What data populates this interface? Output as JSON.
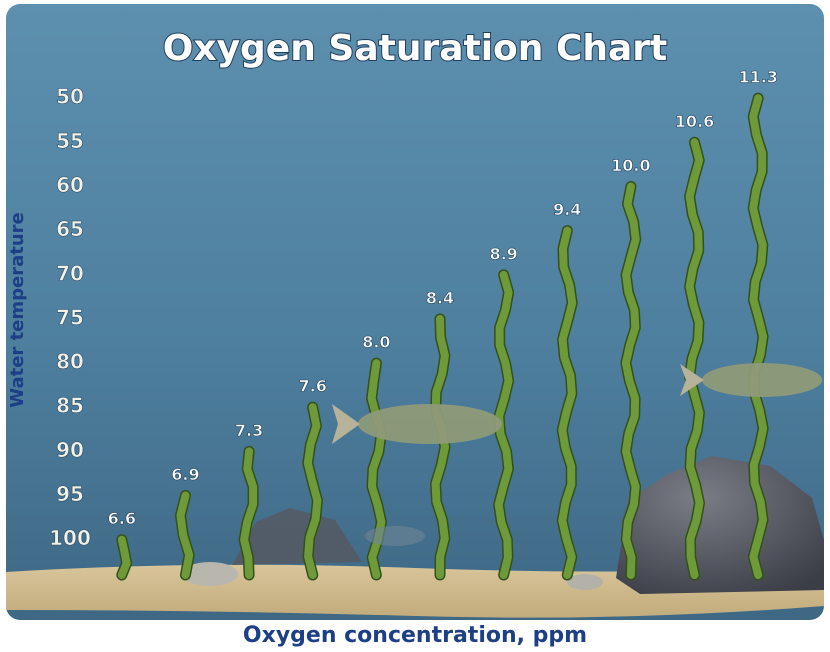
{
  "chart_data": {
    "type": "seaweed",
    "title": "Oxygen Saturation Chart",
    "x_label": "Oxygen concentration, ppm",
    "y_label": "Water temperature",
    "categories": [
      "6.6",
      "6.9",
      "7.3",
      "7.6",
      "8.0",
      "8.4",
      "8.9",
      "9.4",
      "10.0",
      "10.6",
      "11.3"
    ],
    "values": [
      100,
      95,
      90,
      85,
      80,
      75,
      70,
      65,
      60,
      55,
      50
    ],
    "color": "#6e9a3a",
    "ylim": [
      104,
      45
    ],
    "yticks": [
      50,
      55,
      60,
      65,
      70,
      75,
      80,
      85,
      90,
      95,
      100
    ],
    "grid": false
  }
}
